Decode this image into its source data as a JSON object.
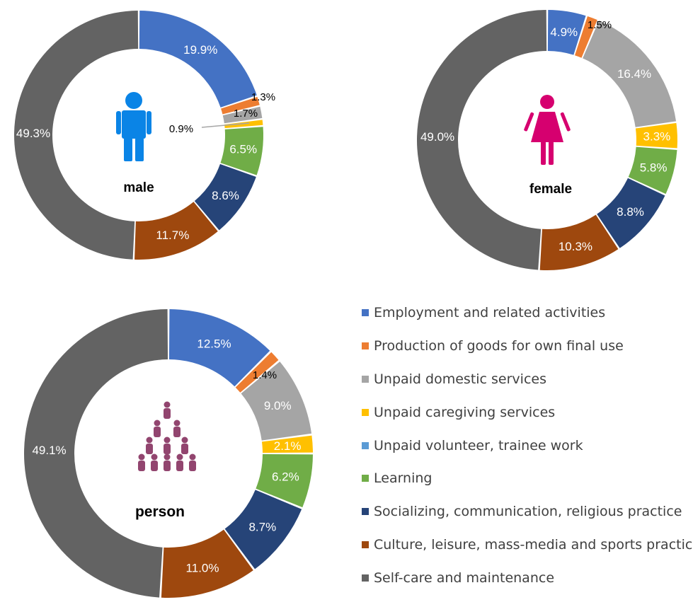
{
  "chart_data": {
    "type": "pie",
    "variant": "donut",
    "categories": [
      "Employment and related activities",
      "Production of goods for own final use",
      "Unpaid domestic services",
      "Unpaid caregiving services",
      "Unpaid volunteer, trainee work",
      "Learning",
      "Socializing, communication, religious practice",
      "Culture, leisure, mass-media and sports practice",
      "Self-care and maintenance"
    ],
    "colors": [
      "#4472c4",
      "#ed7d31",
      "#a5a5a5",
      "#ffc000",
      "#5b9bd5",
      "#70ad47",
      "#264478",
      "#9e480e",
      "#636363"
    ],
    "series": [
      {
        "name": "male",
        "values": [
          19.9,
          1.3,
          1.7,
          0.9,
          0.0,
          6.5,
          8.6,
          11.7,
          49.3
        ],
        "labels": [
          "19.9%",
          "1.3%",
          "1.7%",
          "0.9%",
          "",
          "6.5%",
          "8.6%",
          "11.7%",
          "49.3%"
        ]
      },
      {
        "name": "female",
        "values": [
          4.9,
          1.5,
          16.4,
          3.3,
          0.0,
          5.8,
          8.8,
          10.3,
          49.0
        ],
        "labels": [
          "4.9%",
          "1.5%",
          "16.4%",
          "3.3%",
          "",
          "5.8%",
          "8.8%",
          "10.3%",
          "49.0%"
        ]
      },
      {
        "name": "person",
        "values": [
          12.5,
          1.4,
          9.0,
          2.1,
          0.0,
          6.2,
          8.7,
          11.0,
          49.1
        ],
        "labels": [
          "12.5%",
          "1.4%",
          "9.0%",
          "2.1%",
          "",
          "6.2%",
          "8.7%",
          "11.0%",
          "49.1%"
        ]
      }
    ],
    "legend_position": "bottom-right"
  }
}
